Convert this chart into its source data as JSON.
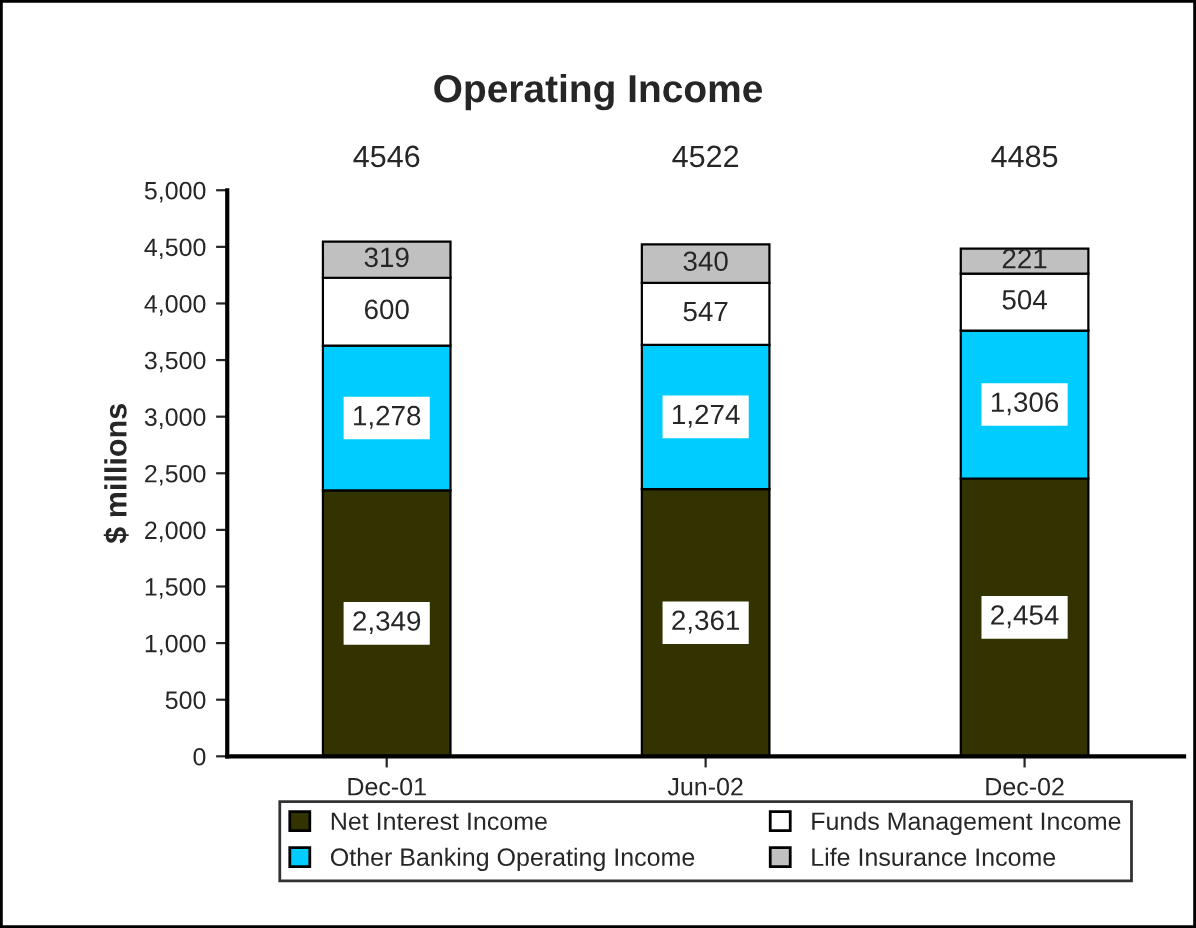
{
  "chart_data": {
    "type": "bar",
    "stacked": true,
    "title": "Operating Income",
    "ylabel": "$ millions",
    "categories": [
      "Dec-01",
      "Jun-02",
      "Dec-02"
    ],
    "series": [
      {
        "name": "Net Interest Income",
        "color": "#333300",
        "values": [
          2349,
          2361,
          2454
        ],
        "value_labels": [
          "2,349",
          "2,361",
          "2,454"
        ]
      },
      {
        "name": "Other Banking Operating Income",
        "color": "#00ccff",
        "values": [
          1278,
          1274,
          1306
        ],
        "value_labels": [
          "1,278",
          "1,274",
          "1,306"
        ]
      },
      {
        "name": "Funds Management Income",
        "color": "#ffffff",
        "values": [
          600,
          547,
          504
        ],
        "value_labels": [
          "600",
          "547",
          "504"
        ]
      },
      {
        "name": "Life Insurance Income",
        "color": "#c0c0c0",
        "values": [
          319,
          340,
          221
        ],
        "value_labels": [
          "319",
          "340",
          "221"
        ]
      }
    ],
    "totals": [
      "4546",
      "4522",
      "4485"
    ],
    "ylim": [
      0,
      5000
    ],
    "yticks": [
      0,
      500,
      {
        "value": 1000,
        "label": "1,000"
      },
      {
        "value": 1500,
        "label": "1,500"
      },
      {
        "value": 2000,
        "label": "2,000"
      },
      {
        "value": 2500,
        "label": "2,500"
      },
      {
        "value": 3000,
        "label": "3,000"
      },
      {
        "value": 3500,
        "label": "3,500"
      },
      {
        "value": 4000,
        "label": "4,000"
      },
      {
        "value": 4500,
        "label": "4,500"
      },
      {
        "value": 5000,
        "label": "5,000"
      }
    ],
    "grid": false,
    "legend": "bottom"
  }
}
